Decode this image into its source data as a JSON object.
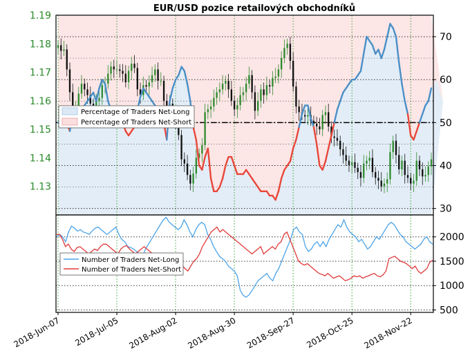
{
  "title": "EUR/USD pozice retailových obchodníků",
  "colors": {
    "price_up": "#2e8b2e",
    "price_down": "#111111",
    "pct_long_line": "#4a8fc6",
    "pct_short_line": "#e8473a",
    "fill_long": "#dce9f5",
    "fill_short": "#fbdede",
    "num_long": "#4aa3e8",
    "num_short": "#e03a3a",
    "grid_green": "#3aa03a",
    "grid_dark": "#333333",
    "left_tick": "#2a8a2a"
  },
  "legend_top": {
    "items": [
      "Percentage of Traders Net-Long",
      "Percentage of Traders Net-Short"
    ]
  },
  "legend_bottom": {
    "items": [
      "Number of Traders Net-Long",
      "Number of Traders Net-Short"
    ]
  },
  "chart_data": [
    {
      "type": "candlestick+line",
      "title": "EUR/USD pozice retailových obchodníků",
      "x_ticks": [
        "2018-Jun-07",
        "2018-Jul-05",
        "2018-Aug-02",
        "2018-Aug-30",
        "2018-Sep-27",
        "2018-Oct-25",
        "2018-Nov-22"
      ],
      "x_tick_index": [
        0,
        20,
        40,
        60,
        80,
        100,
        120
      ],
      "left_axis": {
        "label": "",
        "ticks": [
          1.13,
          1.14,
          1.15,
          1.16,
          1.17,
          1.18,
          1.19
        ],
        "ylim": [
          1.12,
          1.19
        ]
      },
      "right_axis": {
        "label": "",
        "ticks": [
          30,
          40,
          50,
          60,
          70
        ],
        "ylim": [
          28.5,
          75
        ]
      },
      "reference_line": 50,
      "price_close": [
        1.1795,
        1.1775,
        1.178,
        1.171,
        1.163,
        1.156,
        1.158,
        1.1625,
        1.166,
        1.164,
        1.162,
        1.159,
        1.158,
        1.16,
        1.161,
        1.1655,
        1.166,
        1.1695,
        1.172,
        1.171,
        1.171,
        1.1705,
        1.1695,
        1.1665,
        1.1705,
        1.173,
        1.1715,
        1.164,
        1.162,
        1.1655,
        1.165,
        1.1665,
        1.169,
        1.171,
        1.167,
        1.167,
        1.16,
        1.158,
        1.159,
        1.156,
        1.153,
        1.148,
        1.1395,
        1.138,
        1.134,
        1.131,
        1.1345,
        1.14,
        1.1415,
        1.1445,
        1.156,
        1.157,
        1.158,
        1.161,
        1.163,
        1.164,
        1.166,
        1.167,
        1.164,
        1.16,
        1.157,
        1.1585,
        1.162,
        1.163,
        1.166,
        1.169,
        1.163,
        1.1565,
        1.16,
        1.164,
        1.162,
        1.1655,
        1.165,
        1.168,
        1.1685,
        1.171,
        1.175,
        1.1785,
        1.18,
        1.174,
        1.165,
        1.158,
        1.156,
        1.155,
        1.1545,
        1.155,
        1.153,
        1.152,
        1.151,
        1.15,
        1.155,
        1.156,
        1.151,
        1.1475,
        1.147,
        1.146,
        1.143,
        1.141,
        1.139,
        1.1375,
        1.1385,
        1.1365,
        1.135,
        1.133,
        1.138,
        1.139,
        1.14,
        1.135,
        1.133,
        1.132,
        1.13,
        1.131,
        1.1325,
        1.142,
        1.146,
        1.141,
        1.136,
        1.139,
        1.134,
        1.133,
        1.131,
        1.132,
        1.139,
        1.136,
        1.1335,
        1.134,
        1.137,
        1.1395
      ],
      "pct_long": [
        50,
        50,
        50,
        50,
        48,
        52,
        50,
        49,
        53,
        54,
        55,
        56,
        57,
        55,
        58,
        60,
        59,
        55,
        53,
        51,
        49,
        49,
        50,
        48,
        47,
        48,
        49,
        53,
        56,
        58,
        57,
        56,
        55,
        54,
        52,
        52,
        50,
        46,
        55,
        58,
        60,
        61,
        63,
        62,
        59,
        55,
        49,
        46,
        40,
        39,
        42,
        44,
        37,
        34,
        34,
        35,
        37,
        40,
        42,
        42,
        40,
        38,
        38,
        38,
        39,
        38,
        37,
        36,
        35,
        34,
        34,
        34,
        33,
        33,
        32,
        34,
        37,
        39,
        40,
        41,
        44,
        46,
        49,
        52,
        54,
        54,
        51,
        49,
        45,
        40,
        39,
        41,
        44,
        47,
        50,
        53,
        55,
        57,
        58,
        59,
        60,
        60,
        61,
        62,
        66,
        70,
        69,
        68,
        66,
        67,
        65,
        67,
        70,
        73,
        72,
        70,
        64,
        59,
        55,
        52,
        47,
        46,
        48,
        50,
        52,
        54,
        55,
        58,
        59,
        60,
        57,
        55
      ]
    },
    {
      "type": "line",
      "series": [
        {
          "name": "Number of Traders Net-Long",
          "values": [
            2000,
            2050,
            2000,
            1900,
            2100,
            2220,
            2180,
            2120,
            2150,
            2100,
            2080,
            2050,
            2120,
            2180,
            2200,
            2150,
            2100,
            2050,
            2100,
            2150,
            2200,
            2050,
            1950,
            1900,
            1800,
            1780,
            1750,
            1700,
            1650,
            1600,
            1750,
            1850,
            1950,
            2050,
            2150,
            2250,
            2350,
            2400,
            2300,
            2250,
            2200,
            2150,
            2200,
            2350,
            2250,
            2100,
            2000,
            2150,
            2250,
            2300,
            2250,
            2050,
            1950,
            1800,
            1700,
            1600,
            1550,
            1500,
            1400,
            1350,
            1300,
            1200,
            900,
            800,
            760,
            810,
            900,
            1000,
            1100,
            1150,
            1200,
            1250,
            1150,
            1100,
            1250,
            1350,
            1500,
            1650,
            1800,
            1950,
            2150,
            2200,
            2100,
            2050,
            1800,
            1700,
            1750,
            1850,
            1900,
            1800,
            1900,
            1800,
            1950,
            2050,
            2150,
            2250,
            2200,
            2350,
            2200,
            2100,
            2050,
            2000,
            1900,
            1950,
            1850,
            1750,
            1800,
            1900,
            2000,
            1950,
            2050,
            2150,
            2250,
            2300,
            2250,
            2150,
            2050,
            2000,
            1900,
            1850,
            1800,
            1750,
            1800,
            1850,
            1950,
            2000,
            1900,
            1850
          ]
        },
        {
          "name": "Number of Traders Net-Short",
          "values": [
            2050,
            2050,
            1950,
            1800,
            1850,
            1750,
            1700,
            1780,
            1800,
            1750,
            1700,
            1650,
            1700,
            1750,
            1720,
            1800,
            1850,
            1850,
            1800,
            1750,
            1700,
            1650,
            1750,
            1800,
            1820,
            1750,
            1700,
            1650,
            1700,
            1750,
            1800,
            1750,
            1700,
            1650,
            1550,
            1500,
            1450,
            1400,
            1450,
            1500,
            1480,
            1450,
            1400,
            1420,
            1350,
            1300,
            1400,
            1500,
            1550,
            1650,
            1800,
            1900,
            2000,
            2100,
            2150,
            2200,
            2100,
            2150,
            2100,
            2050,
            2000,
            1950,
            1900,
            1850,
            1800,
            1750,
            1700,
            1650,
            1700,
            1750,
            1800,
            1650,
            1700,
            1750,
            1800,
            1750,
            1850,
            1900,
            2050,
            2100,
            1950,
            1800,
            1650,
            1500,
            1450,
            1420,
            1450,
            1400,
            1350,
            1300,
            1250,
            1230,
            1200,
            1250,
            1200,
            1150,
            1180,
            1200,
            1150,
            1100,
            1120,
            1150,
            1200,
            1180,
            1200,
            1150,
            1180,
            1200,
            1230,
            1250,
            1200,
            1180,
            1220,
            1300,
            1550,
            1580,
            1600,
            1550,
            1500,
            1480,
            1450,
            1400,
            1350,
            1400,
            1300,
            1250,
            1300,
            1350,
            1480,
            1520
          ]
        }
      ],
      "right_axis": {
        "label": "",
        "ticks": [
          500,
          1000,
          1500,
          2000
        ],
        "ylim": [
          450,
          2450
        ]
      }
    }
  ]
}
